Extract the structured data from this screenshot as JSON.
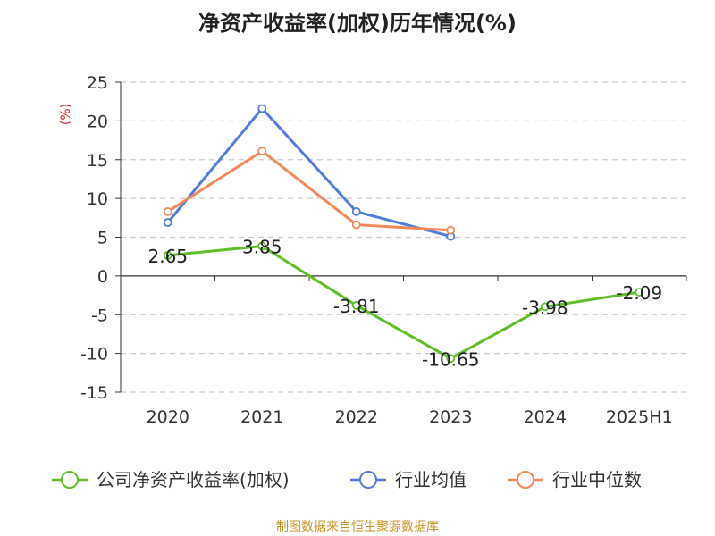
{
  "title": "净资产收益率(加权)历年情况(%)",
  "source": "制图数据来自恒生聚源数据库",
  "chart_data": {
    "type": "line",
    "title": "净资产收益率(加权)历年情况(%)",
    "xlabel": "",
    "ylabel": "(%)",
    "categories": [
      "2020",
      "2021",
      "2022",
      "2023",
      "2024",
      "2025H1"
    ],
    "ylim": [
      -15,
      25
    ],
    "yticks": [
      25,
      20,
      15,
      10,
      5,
      0,
      -5,
      -10,
      -15
    ],
    "grid": true,
    "legend_position": "bottom",
    "series": [
      {
        "name": "公司净资产收益率(加权)",
        "color": "#5ec026",
        "values": [
          2.65,
          3.85,
          -3.81,
          -10.65,
          -3.98,
          -2.09
        ],
        "labels": [
          "2.65",
          "3.85",
          "-3.81",
          "-10.65",
          "-3.98",
          "-2.09"
        ]
      },
      {
        "name": "行业均值",
        "color": "#4f7fd8",
        "values": [
          6.9,
          21.6,
          8.3,
          5.1,
          null,
          null
        ]
      },
      {
        "name": "行业中位数",
        "color": "#f5895a",
        "values": [
          8.3,
          16.1,
          6.6,
          5.9,
          null,
          null
        ]
      }
    ]
  }
}
